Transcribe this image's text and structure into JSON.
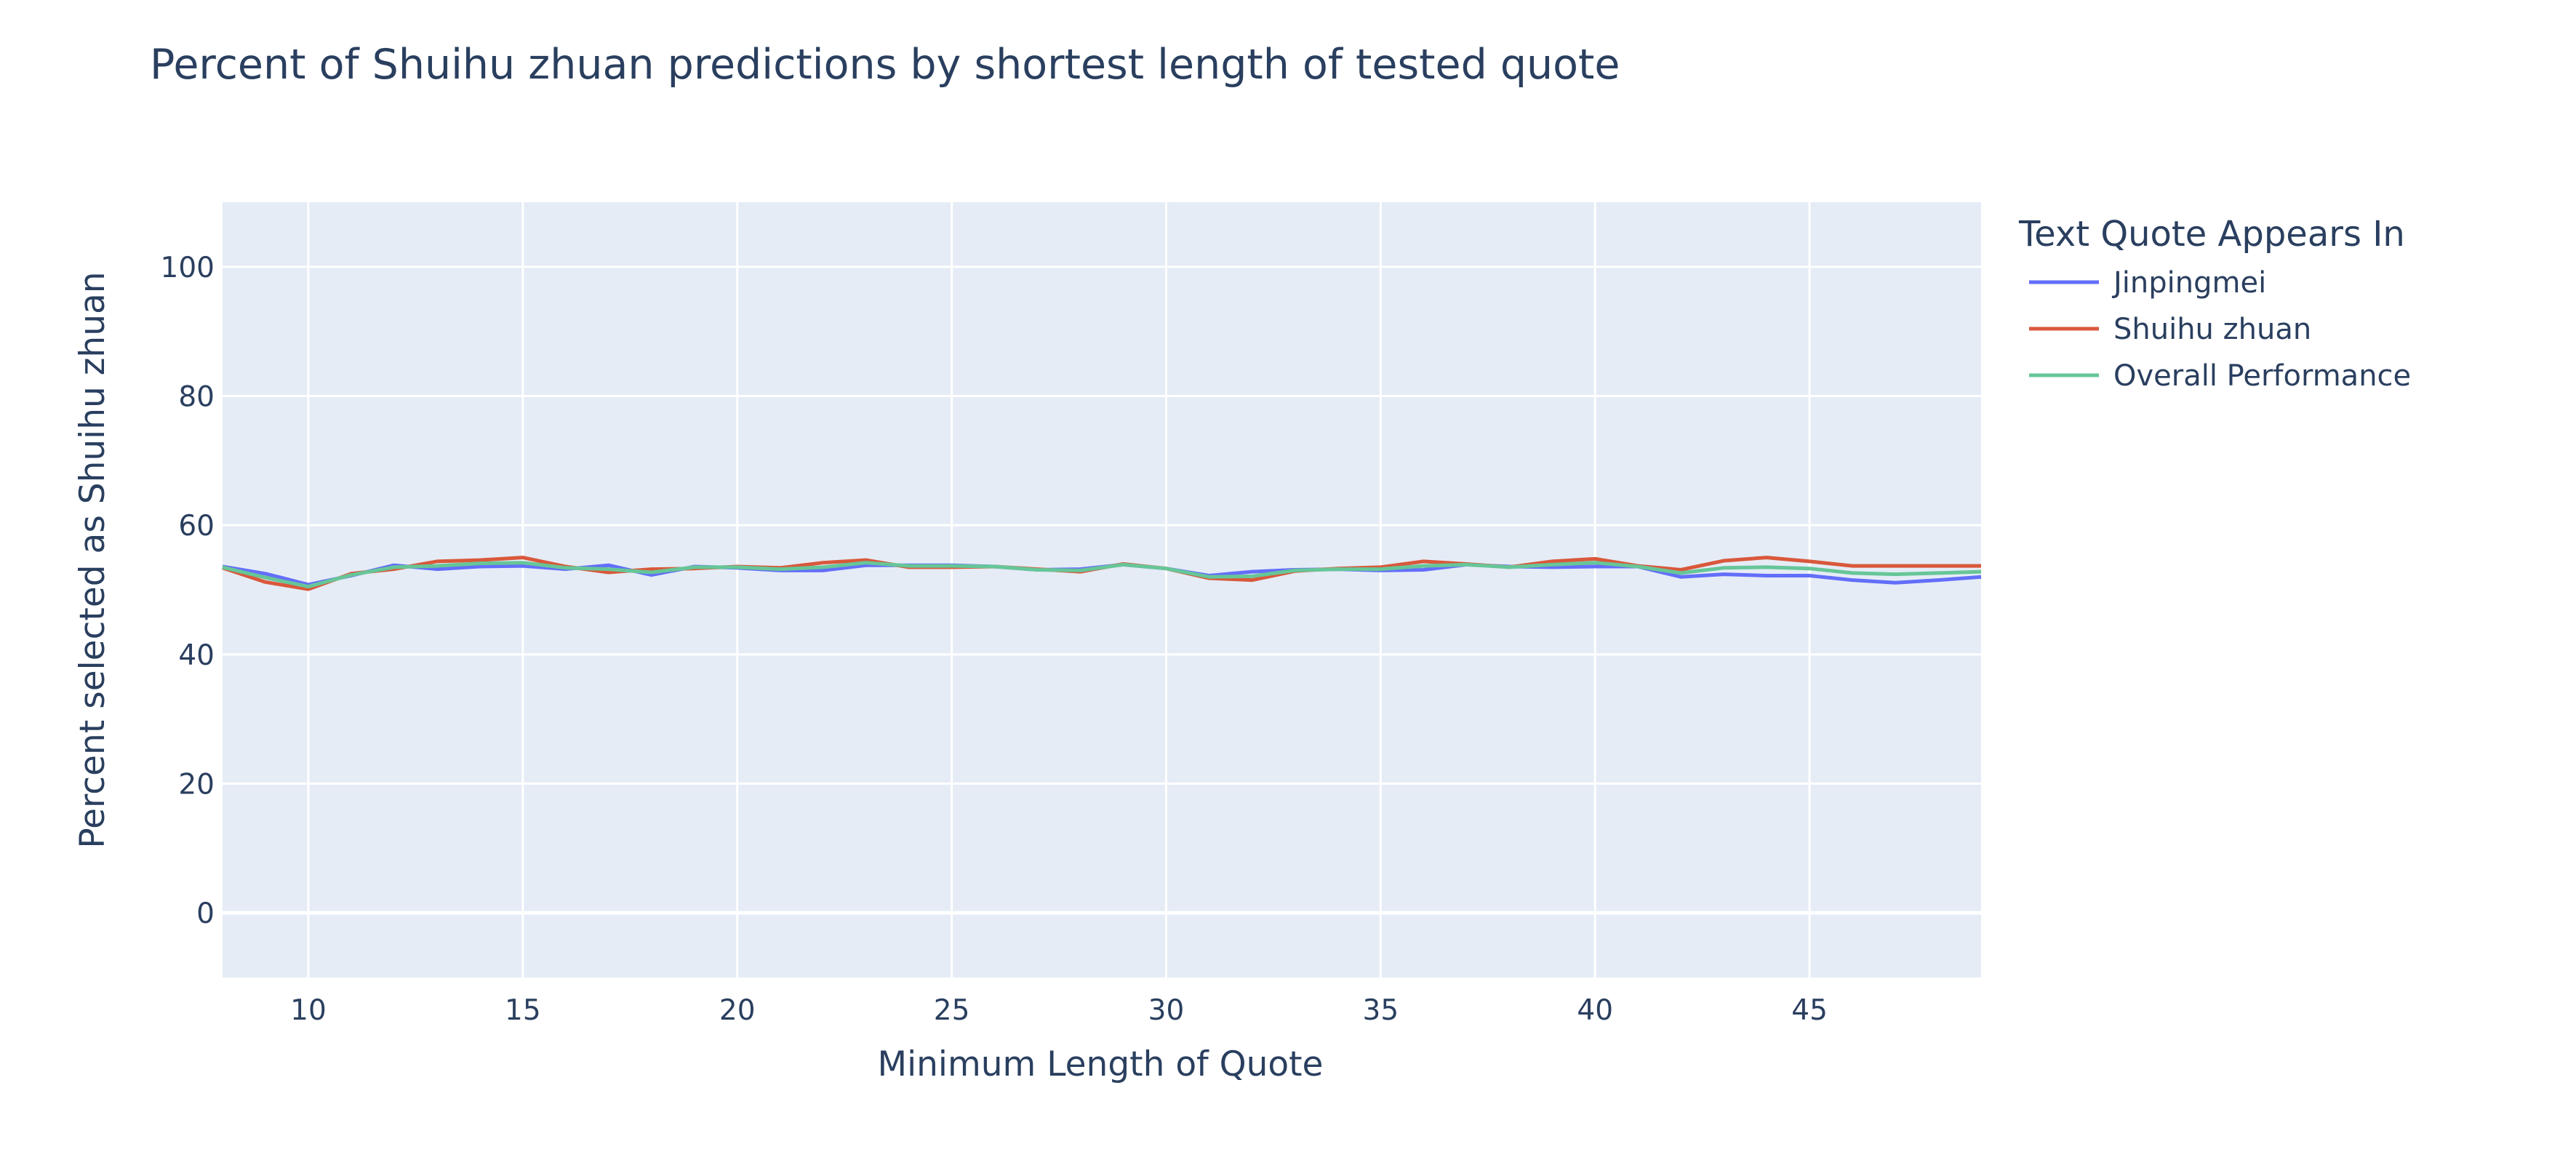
{
  "chart_data": {
    "type": "line",
    "title": "Percent of Shuihu zhuan predictions by shortest length of tested quote",
    "xlabel": "Minimum Length of Quote",
    "ylabel": "Percent selected as Shuihu zhuan",
    "xlim": [
      8,
      49
    ],
    "ylim": [
      -10,
      110
    ],
    "x_ticks": [
      "10",
      "15",
      "20",
      "25",
      "30",
      "35",
      "40",
      "45"
    ],
    "y_ticks": [
      "0",
      "20",
      "40",
      "60",
      "80",
      "100"
    ],
    "grid": true,
    "legend_title": "Text Quote Appears In",
    "legend_position": "right",
    "x": [
      8,
      9,
      10,
      11,
      12,
      13,
      14,
      15,
      16,
      17,
      18,
      19,
      20,
      21,
      22,
      23,
      24,
      25,
      26,
      27,
      28,
      29,
      30,
      31,
      32,
      33,
      34,
      35,
      36,
      37,
      38,
      39,
      40,
      41,
      42,
      43,
      44,
      45,
      46,
      47,
      48,
      49
    ],
    "series": [
      {
        "name": "Jinpingmei",
        "color": "#636efa",
        "values": [
          53.6,
          52.5,
          50.8,
          52.2,
          53.8,
          53.2,
          53.6,
          53.7,
          53.2,
          53.8,
          52.3,
          53.6,
          53.4,
          53.0,
          53.0,
          53.8,
          53.8,
          53.8,
          53.6,
          53.1,
          53.2,
          53.9,
          53.3,
          52.2,
          52.8,
          53.1,
          53.2,
          53.0,
          53.1,
          53.9,
          53.6,
          53.5,
          53.6,
          53.6,
          52.0,
          52.4,
          52.2,
          52.2,
          51.5,
          51.1,
          51.5,
          52.0
        ]
      },
      {
        "name": "Shuihu zhuan",
        "color": "#d9583b",
        "values": [
          53.4,
          51.2,
          50.1,
          52.5,
          53.2,
          54.4,
          54.6,
          55.0,
          53.6,
          52.7,
          53.2,
          53.3,
          53.6,
          53.4,
          54.2,
          54.6,
          53.5,
          53.5,
          53.6,
          53.2,
          52.8,
          54.0,
          53.3,
          51.8,
          51.5,
          52.9,
          53.3,
          53.5,
          54.4,
          54.0,
          53.5,
          54.4,
          54.8,
          53.7,
          53.1,
          54.5,
          55.0,
          54.4,
          53.7,
          53.7,
          53.7,
          53.7
        ]
      },
      {
        "name": "Overall Performance",
        "color": "#66c698",
        "values": [
          53.5,
          51.9,
          50.5,
          52.3,
          53.5,
          53.7,
          54.1,
          54.2,
          53.4,
          53.2,
          52.7,
          53.5,
          53.5,
          53.2,
          53.5,
          54.2,
          53.7,
          53.7,
          53.6,
          53.1,
          53.0,
          53.9,
          53.3,
          52.0,
          52.1,
          53.0,
          53.2,
          53.2,
          53.7,
          53.9,
          53.5,
          53.9,
          54.2,
          53.6,
          52.6,
          53.4,
          53.5,
          53.3,
          52.6,
          52.4,
          52.6,
          52.8
        ]
      }
    ]
  }
}
